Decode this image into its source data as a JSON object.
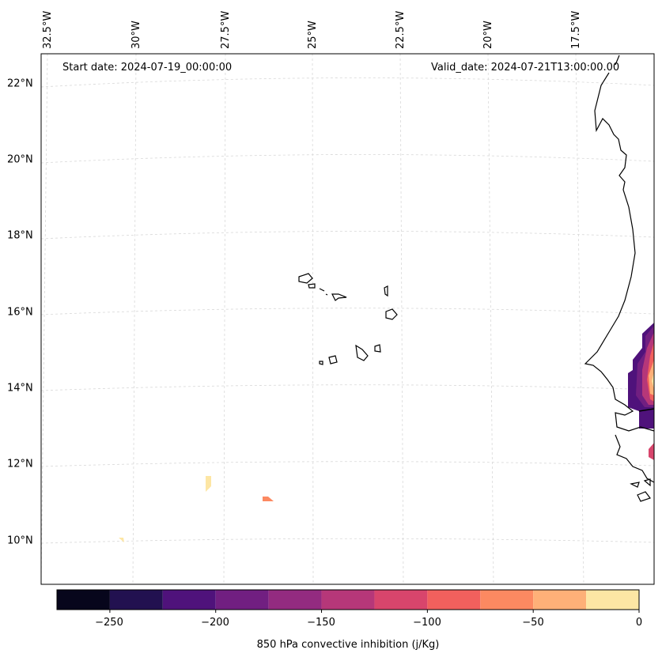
{
  "annotations": {
    "start_date": "Start date: 2024-07-19_00:00:00",
    "valid_date": "Valid_date: 2024-07-21T13:00:00.00"
  },
  "lon_labels": [
    "32.5°W",
    "30°W",
    "27.5°W",
    "25°W",
    "22.5°W",
    "20°W",
    "17.5°W"
  ],
  "lat_labels": [
    "22°N",
    "20°N",
    "18°N",
    "16°N",
    "14°N",
    "12°N",
    "10°N"
  ],
  "colorbar": {
    "title": "850 hPa convective inhibition (j/Kg)",
    "tick_labels": [
      "−250",
      "−200",
      "−150",
      "−100",
      "−50",
      "0"
    ],
    "levels": [
      -275,
      -250,
      -225,
      -200,
      -175,
      -150,
      -125,
      -100,
      -75,
      -50,
      -25,
      0
    ],
    "colors": [
      "#07061c",
      "#221150",
      "#4f127b",
      "#711f81",
      "#932b80",
      "#b63779",
      "#d8456c",
      "#f1605d",
      "#fc8961",
      "#feb078",
      "#fde6a4"
    ]
  }
}
